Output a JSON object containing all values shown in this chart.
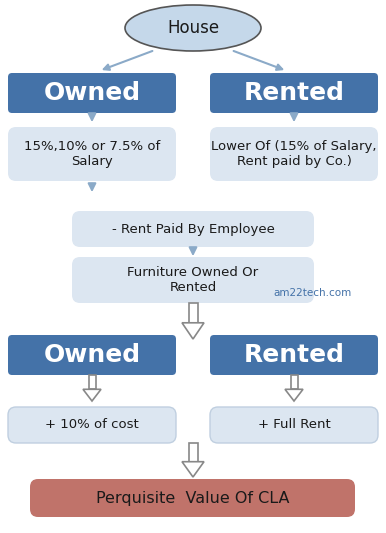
{
  "house_label": "House",
  "owned_label": "Owned",
  "rented_label": "Rented",
  "owned_detail": "15%,10% or 7.5% of\nSalary",
  "rented_detail": "Lower Of (15% of Salary,\nRent paid by Co.)",
  "rent_paid": "- Rent Paid By Employee",
  "furniture": "Furniture Owned Or\nRented",
  "owned2_label": "Owned",
  "rented2_label": "Rented",
  "owned2_detail": "+ 10% of cost",
  "rented2_detail": "+ Full Rent",
  "final_label": "Perquisite  Value Of CLA",
  "watermark": "am22tech.com",
  "bg_color": "#ffffff",
  "ellipse_fill": "#c5d8ea",
  "ellipse_edge": "#555555",
  "blue_box_fill": "#4472a8",
  "blue_box_text": "#ffffff",
  "light_box_fill": "#dce6f1",
  "light_box_edge": "#c0cfe0",
  "final_box_fill": "#c0736a",
  "final_box_text": "#1a1a1a",
  "small_arrow_color": "#8baac8",
  "hollow_arrow_edge": "#888888",
  "watermark_color": "#4472a8",
  "text_color": "#1a1a1a"
}
